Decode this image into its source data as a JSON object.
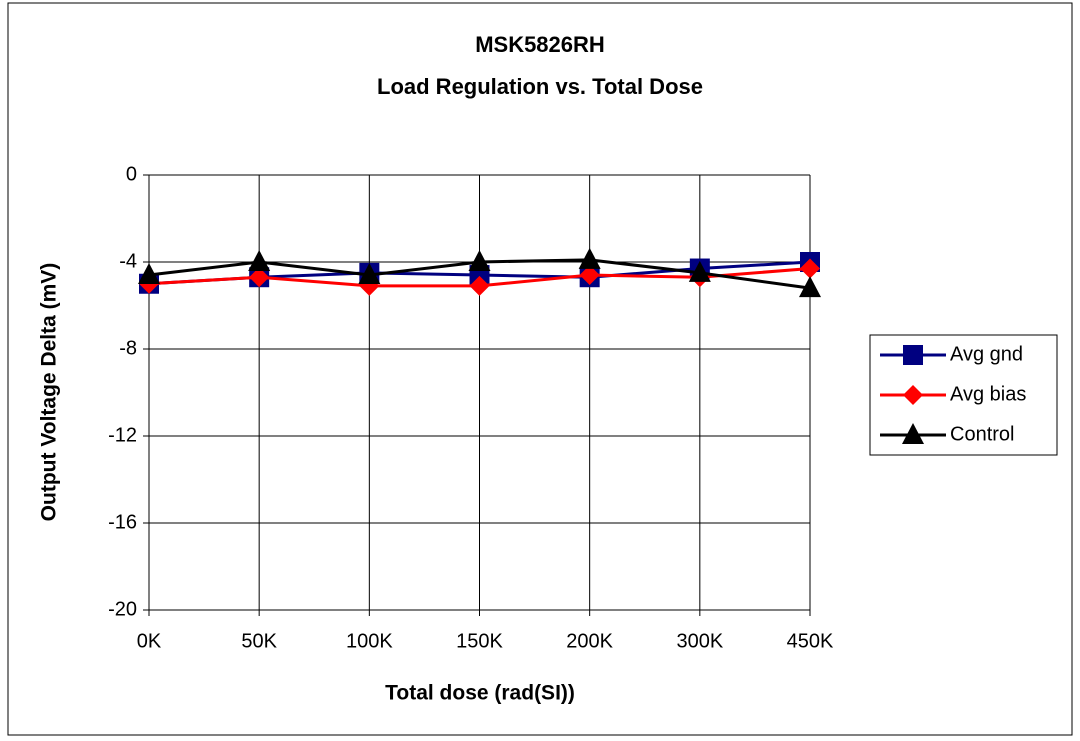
{
  "chart_data": {
    "type": "line",
    "title": [
      "MSK5826RH",
      "Load Regulation vs. Total Dose"
    ],
    "x_label": "Total dose (rad(SI))",
    "y_label": "Output Voltage Delta (mV)",
    "categories": [
      "0K",
      "50K",
      "100K",
      "150K",
      "200K",
      "300K",
      "450K"
    ],
    "series": [
      {
        "name": "Avg gnd",
        "color": "#000080",
        "marker": "square",
        "values": [
          -5.0,
          -4.7,
          -4.5,
          -4.6,
          -4.7,
          -4.3,
          -4.0
        ]
      },
      {
        "name": "Avg bias",
        "color": "#ff0000",
        "marker": "diamond",
        "values": [
          -5.0,
          -4.7,
          -5.1,
          -5.1,
          -4.6,
          -4.7,
          -4.3
        ]
      },
      {
        "name": "Control",
        "color": "#000000",
        "marker": "triangle",
        "values": [
          -4.6,
          -4.0,
          -4.6,
          -4.0,
          -3.9,
          -4.5,
          -5.2
        ]
      }
    ],
    "ylim": [
      -20,
      0
    ],
    "yticks": [
      -20,
      -16,
      -12,
      -8,
      -4,
      0
    ],
    "grid": true,
    "legend": "right"
  }
}
